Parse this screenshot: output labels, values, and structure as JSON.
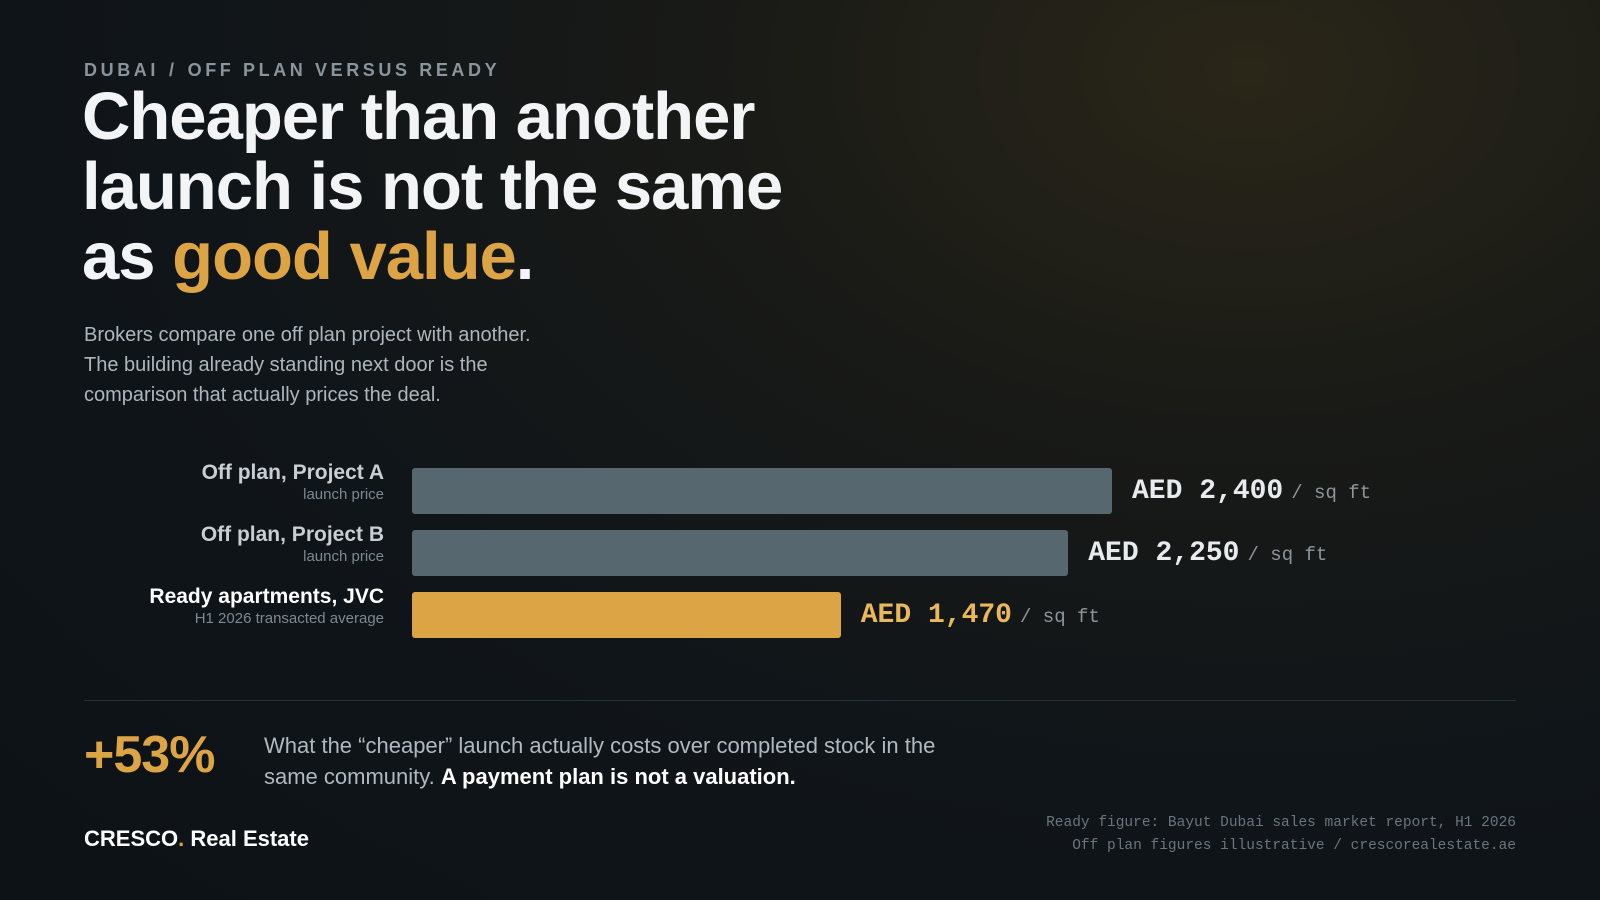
{
  "eyebrow": {
    "region": "DUBAI",
    "separator": "/",
    "topic": "OFF PLAN VERSUS READY"
  },
  "headline": {
    "line1": "Cheaper than another",
    "line2": "launch is not the same",
    "line3_before": "as ",
    "line3_accent": "good value",
    "line3_after": "."
  },
  "lede": "Brokers compare one off plan project with another.\nThe building already standing next door is the\ncomparison that actually prices the deal.",
  "colors": {
    "accent": "#dca444",
    "bar_muted": "#566770",
    "background": "#0f1519"
  },
  "chart_data": {
    "type": "bar",
    "orientation": "horizontal",
    "unit_label": "/ sq ft",
    "currency": "AED",
    "xlim": [
      0,
      2400
    ],
    "categories": [
      "Off plan, Project A",
      "Off plan, Project B",
      "Ready apartments, JVC"
    ],
    "sublabels": [
      "launch price",
      "launch price",
      "H1 2026 transacted average"
    ],
    "values": [
      2400,
      2250,
      1470
    ],
    "value_labels": [
      "AED 2,400",
      "AED 2,250",
      "AED 1,470"
    ],
    "highlight_index": 2
  },
  "stat": {
    "value": "+53%",
    "text": "What the “cheaper” launch actually costs over completed stock in the same community.",
    "emphasis": "A payment plan is not a valuation."
  },
  "brand": {
    "name": "CRESCO",
    "dot": ".",
    "suffix": " Real Estate"
  },
  "source": {
    "line1": "Ready figure: Bayut Dubai sales market report, H1 2026",
    "line2": "Off plan figures illustrative  /  crescorealestate.ae"
  }
}
